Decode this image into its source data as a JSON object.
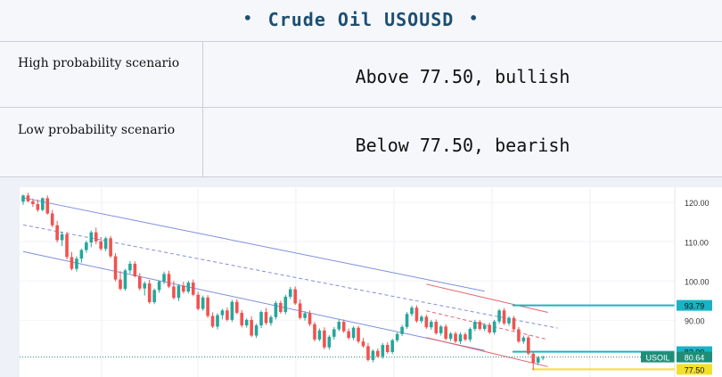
{
  "header": {
    "title": "Crude Oil USOUSD",
    "bullet": "•"
  },
  "scenarios": [
    {
      "label": "High probability scenario",
      "value": "Above 77.50, bullish"
    },
    {
      "label": "Low probability scenario",
      "value": "Below 77.50, bearish"
    }
  ],
  "chart_data": {
    "type": "candlestick",
    "symbol": "USOIL",
    "y_ticks": [
      "120.00",
      "110.00",
      "100.00",
      "90.00"
    ],
    "ylim": [
      76,
      123
    ],
    "ohlc": [
      [
        120.2,
        122.0,
        119.4,
        121.8
      ],
      [
        121.8,
        122.5,
        120.1,
        120.3
      ],
      [
        120.3,
        121.0,
        118.9,
        119.6
      ],
      [
        119.6,
        120.8,
        117.6,
        118.1
      ],
      [
        118.1,
        121.3,
        117.8,
        121.1
      ],
      [
        121.1,
        121.8,
        116.9,
        117.2
      ],
      [
        117.2,
        118.1,
        113.7,
        114.2
      ],
      [
        114.2,
        115.3,
        109.8,
        110.4
      ],
      [
        110.4,
        112.6,
        108.9,
        111.9
      ],
      [
        111.9,
        112.5,
        105.5,
        106.1
      ],
      [
        106.1,
        107.4,
        102.7,
        103.1
      ],
      [
        103.1,
        106.3,
        102.4,
        105.7
      ],
      [
        105.7,
        108.2,
        104.7,
        107.9
      ],
      [
        107.9,
        110.3,
        107.2,
        109.8
      ],
      [
        109.8,
        112.9,
        108.6,
        112.4
      ],
      [
        112.4,
        113.6,
        109.4,
        110.1
      ],
      [
        110.1,
        111.2,
        107.7,
        108.2
      ],
      [
        108.2,
        111.3,
        107.6,
        110.9
      ],
      [
        110.9,
        111.5,
        105.9,
        106.3
      ],
      [
        106.3,
        107.1,
        99.9,
        100.4
      ],
      [
        100.4,
        102.5,
        97.6,
        98.0
      ],
      [
        98.0,
        103.1,
        97.5,
        102.7
      ],
      [
        102.7,
        105.1,
        101.9,
        104.4
      ],
      [
        104.4,
        105.0,
        100.9,
        101.2
      ],
      [
        101.2,
        102.0,
        97.6,
        98.1
      ],
      [
        98.1,
        99.9,
        96.3,
        99.4
      ],
      [
        99.4,
        100.3,
        94.2,
        94.6
      ],
      [
        94.6,
        98.1,
        94.1,
        97.7
      ],
      [
        97.7,
        100.2,
        97.0,
        99.9
      ],
      [
        99.9,
        102.4,
        99.2,
        101.8
      ],
      [
        101.8,
        102.6,
        98.2,
        98.6
      ],
      [
        98.6,
        100.0,
        95.3,
        95.7
      ],
      [
        95.7,
        99.2,
        94.9,
        98.8
      ],
      [
        98.8,
        99.8,
        96.8,
        97.3
      ],
      [
        97.3,
        100.1,
        96.8,
        99.6
      ],
      [
        99.6,
        100.4,
        96.1,
        96.5
      ],
      [
        96.5,
        97.3,
        92.5,
        92.9
      ],
      [
        92.9,
        96.3,
        92.4,
        95.8
      ],
      [
        95.8,
        96.4,
        90.6,
        91.1
      ],
      [
        91.1,
        92.0,
        88.0,
        88.4
      ],
      [
        88.4,
        91.8,
        87.7,
        91.3
      ],
      [
        91.3,
        92.9,
        90.2,
        92.5
      ],
      [
        92.5,
        93.3,
        89.7,
        90.1
      ],
      [
        90.1,
        95.2,
        89.6,
        94.7
      ],
      [
        94.7,
        95.4,
        91.5,
        91.9
      ],
      [
        91.9,
        92.6,
        88.2,
        88.7
      ],
      [
        88.7,
        90.5,
        88.1,
        90.1
      ],
      [
        90.1,
        91.0,
        85.7,
        86.1
      ],
      [
        86.1,
        89.1,
        85.5,
        88.7
      ],
      [
        88.7,
        92.5,
        88.0,
        92.1
      ],
      [
        92.1,
        93.1,
        88.8,
        89.3
      ],
      [
        89.3,
        91.3,
        88.6,
        90.8
      ],
      [
        90.8,
        94.9,
        90.2,
        94.4
      ],
      [
        94.4,
        95.0,
        91.7,
        92.1
      ],
      [
        92.1,
        96.5,
        91.5,
        96.0
      ],
      [
        96.0,
        98.5,
        95.4,
        97.9
      ],
      [
        97.9,
        98.6,
        93.9,
        94.3
      ],
      [
        94.3,
        95.3,
        90.2,
        90.6
      ],
      [
        90.6,
        92.3,
        89.9,
        91.8
      ],
      [
        91.8,
        92.5,
        88.5,
        89.0
      ],
      [
        89.0,
        89.6,
        84.6,
        85.1
      ],
      [
        85.1,
        87.9,
        84.7,
        87.4
      ],
      [
        87.4,
        88.2,
        82.6,
        83.1
      ],
      [
        83.1,
        86.2,
        82.5,
        85.8
      ],
      [
        85.8,
        88.3,
        85.1,
        87.7
      ],
      [
        87.7,
        90.1,
        87.2,
        89.6
      ],
      [
        89.6,
        90.2,
        86.8,
        87.2
      ],
      [
        87.2,
        87.9,
        85.1,
        85.5
      ],
      [
        85.5,
        88.5,
        84.9,
        88.1
      ],
      [
        88.1,
        88.6,
        84.1,
        84.6
      ],
      [
        84.6,
        85.5,
        83.0,
        83.4
      ],
      [
        83.4,
        84.2,
        79.5,
        79.9
      ],
      [
        79.9,
        82.6,
        79.3,
        82.2
      ],
      [
        82.2,
        82.8,
        80.4,
        80.8
      ],
      [
        80.8,
        84.2,
        80.2,
        83.7
      ],
      [
        83.7,
        84.4,
        81.5,
        81.9
      ],
      [
        81.9,
        85.3,
        81.4,
        84.9
      ],
      [
        84.9,
        86.9,
        84.4,
        86.5
      ],
      [
        86.5,
        88.8,
        86.0,
        88.3
      ],
      [
        88.3,
        92.1,
        87.8,
        91.6
      ],
      [
        91.6,
        93.7,
        91.0,
        93.2
      ],
      [
        93.2,
        93.8,
        89.4,
        89.8
      ],
      [
        89.8,
        91.3,
        89.2,
        90.9
      ],
      [
        90.9,
        91.4,
        87.8,
        88.2
      ],
      [
        88.2,
        90.1,
        87.6,
        89.6
      ],
      [
        89.6,
        90.2,
        86.3,
        86.7
      ],
      [
        86.7,
        88.8,
        86.1,
        88.4
      ],
      [
        88.4,
        89.0,
        84.9,
        85.3
      ],
      [
        85.3,
        87.0,
        84.7,
        86.6
      ],
      [
        86.6,
        87.1,
        84.2,
        84.6
      ],
      [
        84.6,
        86.9,
        84.0,
        86.4
      ],
      [
        86.4,
        86.9,
        84.7,
        85.1
      ],
      [
        85.1,
        88.2,
        84.5,
        87.8
      ],
      [
        87.8,
        90.1,
        87.2,
        89.6
      ],
      [
        89.6,
        90.1,
        87.4,
        87.8
      ],
      [
        87.8,
        89.3,
        87.2,
        88.8
      ],
      [
        88.8,
        89.4,
        86.5,
        86.9
      ],
      [
        86.9,
        90.1,
        86.3,
        89.7
      ],
      [
        89.7,
        92.9,
        89.1,
        92.5
      ],
      [
        92.5,
        93.1,
        88.8,
        89.2
      ],
      [
        89.2,
        91.0,
        88.6,
        90.6
      ],
      [
        90.6,
        91.1,
        87.3,
        87.7
      ],
      [
        87.7,
        88.3,
        84.2,
        84.6
      ],
      [
        84.6,
        86.1,
        84.0,
        85.6
      ],
      [
        85.6,
        86.2,
        81.1,
        81.5
      ],
      [
        81.5,
        82.0,
        77.3,
        79.2
      ],
      [
        79.2,
        80.9,
        78.6,
        80.5
      ],
      [
        80.5,
        81.0,
        79.8,
        80.6
      ]
    ],
    "channels": [
      {
        "color": "#7d8fdd",
        "lines": [
          [
            [
              0,
              121.2
            ],
            [
              95,
              97.4
            ]
          ],
          [
            [
              0,
              107.5
            ],
            [
              95,
              82.3
            ]
          ],
          [
            [
              0,
              114.3
            ],
            [
              110,
              88.0
            ]
          ]
        ]
      },
      {
        "color": "#e0646e",
        "lines": [
          [
            [
              83,
              99.2
            ],
            [
              108,
              92.0
            ]
          ],
          [
            [
              83,
              85.6
            ],
            [
              108,
              78.2
            ]
          ],
          [
            [
              83,
              92.4
            ],
            [
              108,
              85.1
            ]
          ]
        ]
      }
    ],
    "levels": [
      {
        "label": "93.79",
        "value": 93.79,
        "line_color": "#1ab3c4",
        "label_bg": "#1ab3c4",
        "text_color": "#111111"
      },
      {
        "label": "82.00",
        "value": 82.0,
        "line_color": "#1ab3c4",
        "label_bg": "#1ab3c4",
        "text_color": "#111111"
      },
      {
        "label": "77.50",
        "value": 77.5,
        "line_color": "#f2e12c",
        "label_bg": "#f2e12c",
        "text_color": "#111111"
      }
    ],
    "price": {
      "label": "80.64",
      "value": 80.64,
      "symbol_label": "USOIL",
      "color": "#1e8e79"
    },
    "up_color": "#26a69a",
    "down_color": "#ef5350"
  }
}
